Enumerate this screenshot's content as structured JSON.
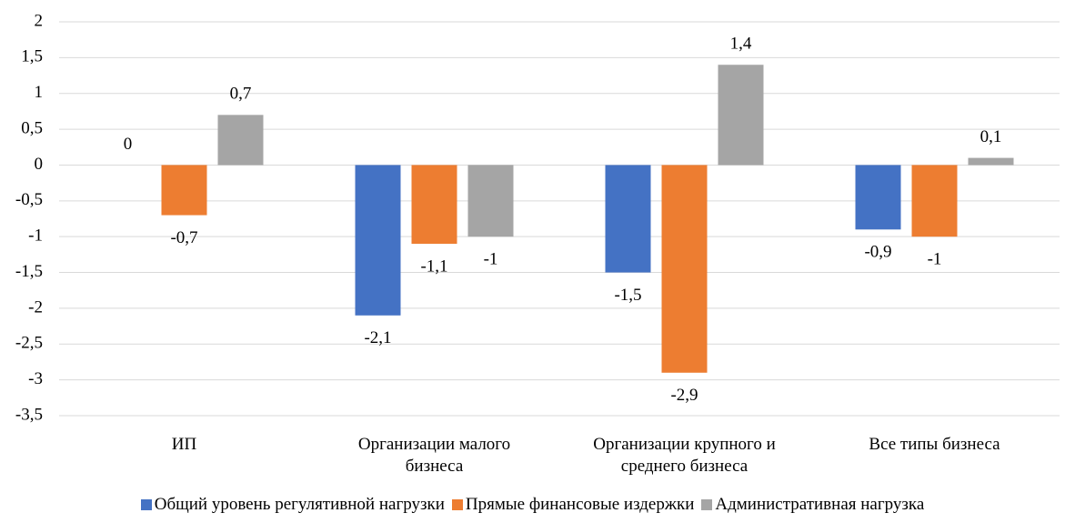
{
  "chart_data": {
    "type": "bar",
    "categories": [
      "ИП",
      "Организации малого бизнеса",
      "Организации крупного и среднего бизнеса",
      "Все типы бизнеса"
    ],
    "series": [
      {
        "name": "Общий уровень регулятивной нагрузки",
        "color": "#4472c4",
        "values": [
          0,
          -2.1,
          -1.5,
          -0.9
        ],
        "value_labels": [
          "0",
          "-2,1",
          "-1,5",
          "-0,9"
        ]
      },
      {
        "name": "Прямые финансовые издержки",
        "color": "#ed7d31",
        "values": [
          -0.7,
          -1.1,
          -2.9,
          -1
        ],
        "value_labels": [
          "-0,7",
          "-1,1",
          "-2,9",
          "-1"
        ]
      },
      {
        "name": "Административная нагрузка",
        "color": "#a5a5a5",
        "values": [
          0.7,
          -1,
          1.4,
          0.1
        ],
        "value_labels": [
          "0,7",
          "-1",
          "1,4",
          "0,1"
        ]
      }
    ],
    "ylim": [
      -3.5,
      2
    ],
    "yticks": [
      2,
      {
        "value": 1.5,
        "label": "1,5"
      },
      1,
      {
        "value": 0.5,
        "label": "0,5"
      },
      0,
      {
        "value": -0.5,
        "label": "-0,5"
      },
      -1,
      {
        "value": -1.5,
        "label": "-1,5"
      },
      -2,
      {
        "value": -2.5,
        "label": "-2,5"
      },
      -3,
      {
        "value": -3.5,
        "label": "-3,5"
      }
    ],
    "grid": true,
    "legend": "bottom"
  }
}
